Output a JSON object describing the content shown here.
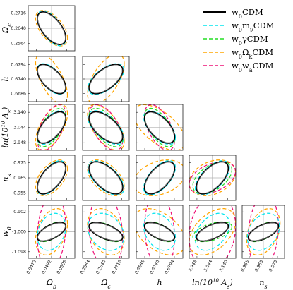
{
  "chart_data": {
    "type": "scatter",
    "subtype": "corner-plot",
    "params": [
      {
        "key": "Ob",
        "label": "Ω_b",
        "ticks": [
          "0.0479",
          "0.0492",
          "0.0505"
        ],
        "range": [
          0.0472,
          0.0512
        ],
        "has_row": false
      },
      {
        "key": "Oc",
        "label": "Ω_c",
        "ticks": [
          "0.2564",
          "0.2640",
          "0.2716"
        ],
        "range": [
          0.2528,
          0.2752
        ],
        "has_row": true
      },
      {
        "key": "h",
        "label": "h",
        "ticks": [
          "0.6686",
          "0.6740",
          "0.6794"
        ],
        "range": [
          0.6655,
          0.6825
        ],
        "has_row": true
      },
      {
        "key": "As",
        "label": "ln(10^10 A_s)",
        "ticks": [
          "2.948",
          "3.044",
          "3.140"
        ],
        "range": [
          2.9,
          3.19
        ],
        "has_row": true
      },
      {
        "key": "ns",
        "label": "n_s",
        "ticks": [
          "0.955",
          "0.965",
          "0.975"
        ],
        "range": [
          0.95,
          0.98
        ],
        "has_row": true
      },
      {
        "key": "w0",
        "label": "w_0",
        "ticks": [
          "-0.902",
          "-1.000",
          "-1.098"
        ],
        "range": [
          -1.13,
          -0.87
        ],
        "has_row": true
      }
    ],
    "center": {
      "Ob": 0.0492,
      "Oc": 0.264,
      "h": 0.674,
      "As": 3.044,
      "ns": 0.965,
      "w0": -1.0
    },
    "series": [
      {
        "name": "w_0CDM",
        "color": "#000000",
        "dash": "solid",
        "ellipses": {
          "Ob|Oc": {
            "rx": 0.0008,
            "ry": 0.0053,
            "rho": -0.6
          },
          "Ob|h": {
            "rx": 0.0008,
            "ry": 0.0036,
            "rho": -0.6
          },
          "Oc|h": {
            "rx": 0.0053,
            "ry": 0.0036,
            "rho": 0.6
          },
          "Ob|As": {
            "rx": 0.0008,
            "ry": 0.065,
            "rho": 0.6
          },
          "Oc|As": {
            "rx": 0.0053,
            "ry": 0.065,
            "rho": -0.6
          },
          "h|As": {
            "rx": 0.0036,
            "ry": 0.065,
            "rho": -0.6
          },
          "Ob|ns": {
            "rx": 0.0008,
            "ry": 0.007,
            "rho": 0.6
          },
          "Oc|ns": {
            "rx": 0.0053,
            "ry": 0.007,
            "rho": -0.6
          },
          "h|ns": {
            "rx": 0.0036,
            "ry": 0.007,
            "rho": 0.6
          },
          "As|ns": {
            "rx": 0.065,
            "ry": 0.007,
            "rho": 0.6
          },
          "Ob|w0": {
            "rx": 0.0008,
            "ry": 0.03,
            "rho": 0.6
          },
          "Oc|w0": {
            "rx": 0.0053,
            "ry": 0.03,
            "rho": -0.6
          },
          "h|w0": {
            "rx": 0.0036,
            "ry": 0.03,
            "rho": -0.6
          },
          "As|w0": {
            "rx": 0.065,
            "ry": 0.03,
            "rho": 0.6
          },
          "ns|w0": {
            "rx": 0.007,
            "ry": 0.03,
            "rho": 0.6
          }
        }
      },
      {
        "name": "w_0m_νCDM",
        "color": "#00e5ee",
        "dash": "5,3",
        "ellipses": {
          "Ob|Oc": {
            "rx": 0.0008,
            "ry": 0.0057,
            "rho": -0.6
          },
          "Ob|h": {
            "rx": 0.0008,
            "ry": 0.0038,
            "rho": -0.6
          },
          "Oc|h": {
            "rx": 0.0057,
            "ry": 0.0038,
            "rho": 0.6
          },
          "Ob|As": {
            "rx": 0.0008,
            "ry": 0.07,
            "rho": 0.6
          },
          "Oc|As": {
            "rx": 0.0057,
            "ry": 0.07,
            "rho": -0.6
          },
          "h|As": {
            "rx": 0.0038,
            "ry": 0.07,
            "rho": -0.6
          },
          "Ob|ns": {
            "rx": 0.0008,
            "ry": 0.0075,
            "rho": 0.6
          },
          "Oc|ns": {
            "rx": 0.0057,
            "ry": 0.0075,
            "rho": -0.6
          },
          "h|ns": {
            "rx": 0.0038,
            "ry": 0.0075,
            "rho": 0.6
          },
          "As|ns": {
            "rx": 0.07,
            "ry": 0.0075,
            "rho": 0.6
          },
          "Ob|w0": {
            "rx": 0.0008,
            "ry": 0.06,
            "rho": 0.25
          },
          "Oc|w0": {
            "rx": 0.0057,
            "ry": 0.06,
            "rho": -0.25
          },
          "h|w0": {
            "rx": 0.0038,
            "ry": 0.06,
            "rho": -0.3
          },
          "As|w0": {
            "rx": 0.07,
            "ry": 0.06,
            "rho": 0.4
          },
          "ns|w0": {
            "rx": 0.0075,
            "ry": 0.06,
            "rho": 0.3
          }
        }
      },
      {
        "name": "w_0γCDM",
        "color": "#22dd22",
        "dash": "5,3",
        "ellipses": {
          "Ob|Oc": {
            "rx": 0.0008,
            "ry": 0.0053,
            "rho": -0.6
          },
          "Ob|h": {
            "rx": 0.0008,
            "ry": 0.0036,
            "rho": -0.6
          },
          "Oc|h": {
            "rx": 0.0053,
            "ry": 0.0036,
            "rho": 0.6
          },
          "Ob|As": {
            "rx": 0.0008,
            "ry": 0.08,
            "rho": 0.6
          },
          "Oc|As": {
            "rx": 0.0053,
            "ry": 0.08,
            "rho": -0.6
          },
          "h|As": {
            "rx": 0.0036,
            "ry": 0.08,
            "rho": -0.6
          },
          "Ob|ns": {
            "rx": 0.0008,
            "ry": 0.007,
            "rho": 0.6
          },
          "Oc|ns": {
            "rx": 0.0053,
            "ry": 0.007,
            "rho": -0.6
          },
          "h|ns": {
            "rx": 0.0036,
            "ry": 0.007,
            "rho": 0.6
          },
          "As|ns": {
            "rx": 0.08,
            "ry": 0.007,
            "rho": 0.5
          },
          "Ob|w0": {
            "rx": 0.0008,
            "ry": 0.032,
            "rho": 0.6
          },
          "Oc|w0": {
            "rx": 0.0053,
            "ry": 0.032,
            "rho": -0.6
          },
          "h|w0": {
            "rx": 0.0036,
            "ry": 0.032,
            "rho": -0.6
          },
          "As|w0": {
            "rx": 0.08,
            "ry": 0.032,
            "rho": 0.5
          },
          "ns|w0": {
            "rx": 0.007,
            "ry": 0.032,
            "rho": 0.6
          }
        }
      },
      {
        "name": "w_0Ω_kCDM",
        "color": "#ffa500",
        "dash": "5,3",
        "ellipses": {
          "Ob|Oc": {
            "rx": 0.0009,
            "ry": 0.0058,
            "rho": -0.55
          },
          "Ob|h": {
            "rx": 0.0009,
            "ry": 0.0062,
            "rho": -0.65
          },
          "Oc|h": {
            "rx": 0.0058,
            "ry": 0.0062,
            "rho": 0.6
          },
          "Ob|As": {
            "rx": 0.0009,
            "ry": 0.095,
            "rho": 0.6
          },
          "Oc|As": {
            "rx": 0.0058,
            "ry": 0.095,
            "rho": -0.6
          },
          "h|As": {
            "rx": 0.0062,
            "ry": 0.095,
            "rho": -0.6
          },
          "Ob|ns": {
            "rx": 0.0009,
            "ry": 0.0078,
            "rho": 0.5
          },
          "Oc|ns": {
            "rx": 0.0058,
            "ry": 0.0078,
            "rho": -0.5
          },
          "h|ns": {
            "rx": 0.0062,
            "ry": 0.0078,
            "rho": 0.3
          },
          "As|ns": {
            "rx": 0.095,
            "ry": 0.0078,
            "rho": 0.3
          },
          "Ob|w0": {
            "rx": 0.0009,
            "ry": 0.075,
            "rho": 0.35
          },
          "Oc|w0": {
            "rx": 0.0058,
            "ry": 0.075,
            "rho": -0.3
          },
          "h|w0": {
            "rx": 0.0062,
            "ry": 0.075,
            "rho": -0.45
          },
          "As|w0": {
            "rx": 0.095,
            "ry": 0.075,
            "rho": 0.45
          },
          "ns|w0": {
            "rx": 0.0078,
            "ry": 0.075,
            "rho": 0.35
          }
        }
      },
      {
        "name": "w_0w_aCDM",
        "color": "#ee1177",
        "dash": "5,3",
        "ellipses": {
          "Ob|Oc": {
            "rx": 0.0008,
            "ry": 0.0053,
            "rho": -0.6
          },
          "Ob|h": {
            "rx": 0.0008,
            "ry": 0.0036,
            "rho": -0.6
          },
          "Oc|h": {
            "rx": 0.0053,
            "ry": 0.0036,
            "rho": 0.6
          },
          "Ob|As": {
            "rx": 0.0008,
            "ry": 0.095,
            "rho": 0.55
          },
          "Oc|As": {
            "rx": 0.0053,
            "ry": 0.095,
            "rho": -0.55
          },
          "h|As": {
            "rx": 0.0036,
            "ry": 0.095,
            "rho": -0.55
          },
          "Ob|ns": {
            "rx": 0.0008,
            "ry": 0.007,
            "rho": 0.6
          },
          "Oc|ns": {
            "rx": 0.0053,
            "ry": 0.007,
            "rho": -0.6
          },
          "h|ns": {
            "rx": 0.0036,
            "ry": 0.007,
            "rho": 0.6
          },
          "As|ns": {
            "rx": 0.095,
            "ry": 0.007,
            "rho": 0.4
          },
          "Ob|w0": {
            "rx": 0.0008,
            "ry": 0.12,
            "rho": 0.15
          },
          "Oc|w0": {
            "rx": 0.0053,
            "ry": 0.12,
            "rho": -0.15
          },
          "h|w0": {
            "rx": 0.0036,
            "ry": 0.12,
            "rho": -0.15
          },
          "As|w0": {
            "rx": 0.095,
            "ry": 0.12,
            "rho": 0.15
          },
          "ns|w0": {
            "rx": 0.007,
            "ry": 0.12,
            "rho": 0.15
          }
        }
      }
    ],
    "grid": false,
    "reference_lines": true,
    "legend": "top-right"
  }
}
